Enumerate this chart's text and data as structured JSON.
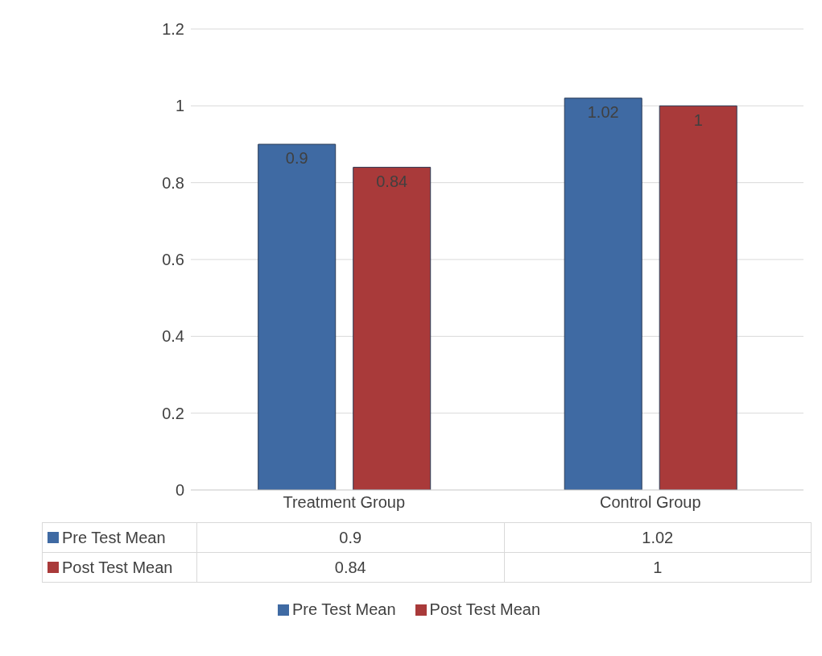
{
  "chart_data": {
    "type": "bar",
    "categories": [
      "Treatment Group",
      "Control Group"
    ],
    "series": [
      {
        "name": "Pre Test Mean",
        "color": "#3f6aa3",
        "values": [
          0.9,
          1.02
        ]
      },
      {
        "name": "Post Test Mean",
        "color": "#a93a3a",
        "values": [
          0.84,
          1
        ]
      }
    ],
    "ylim": [
      0,
      1.2
    ],
    "yticks": [
      0,
      0.2,
      0.4,
      0.6,
      0.8,
      1,
      1.2
    ],
    "grid": "y",
    "data_labels": true,
    "legend": "bottom",
    "annotations": [
      "0.9",
      "1.02",
      "0.84",
      "1"
    ]
  }
}
